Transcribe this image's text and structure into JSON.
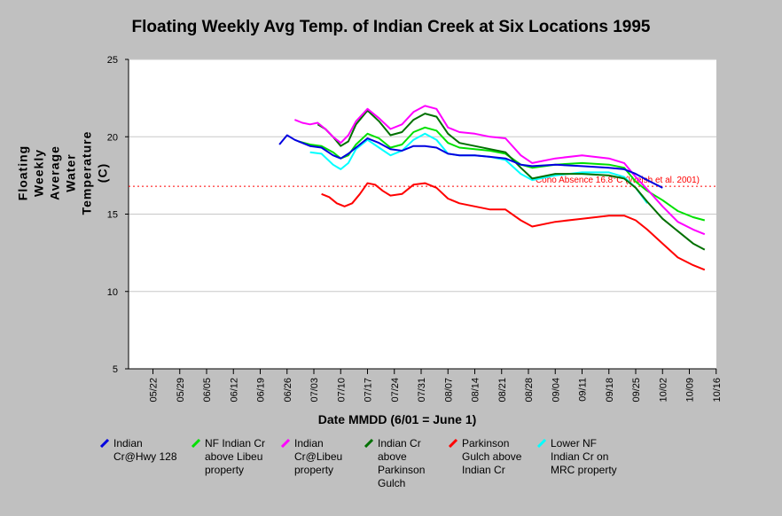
{
  "chart_data": {
    "type": "line",
    "title": "Floating Weekly Avg Temp. of Indian Creek at Six Locations 1995",
    "xlabel": "Date MMDD (6/01 = June 1)",
    "ylabel": "Floating Weekly\nAverage Water\nTemperature (C)",
    "ylim": [
      5,
      25
    ],
    "yticks": [
      "5",
      "10",
      "15",
      "20",
      "25"
    ],
    "xticks": [
      "05/22",
      "05/29",
      "06/05",
      "06/12",
      "06/19",
      "06/26",
      "07/03",
      "07/10",
      "07/17",
      "07/24",
      "07/31",
      "08/07",
      "08/14",
      "08/21",
      "08/28",
      "09/04",
      "09/11",
      "09/18",
      "09/25",
      "10/02",
      "10/09",
      "10/16"
    ],
    "xlim": [
      "05/18",
      "10/25"
    ],
    "grid": "horizontal",
    "reference_line": {
      "y": 16.8,
      "label": "Coho Absence 16.8°C (Welsh et al. 2001)",
      "color": "#ff0000"
    },
    "series": [
      {
        "name": "Indian\nCr@Hwy 128",
        "color": "#0000e0",
        "x": [
          "06/24",
          "06/26",
          "06/28",
          "06/30",
          "07/02",
          "07/05",
          "07/08",
          "07/10",
          "07/12",
          "07/14",
          "07/17",
          "07/20",
          "07/23",
          "07/26",
          "07/29",
          "08/01",
          "08/04",
          "08/07",
          "08/10",
          "08/14",
          "08/18",
          "08/22",
          "08/26",
          "08/29",
          "09/04",
          "09/11",
          "09/18",
          "09/22",
          "09/25",
          "09/28",
          "10/02"
        ],
        "values": [
          19.5,
          20.1,
          19.8,
          19.6,
          19.4,
          19.3,
          18.8,
          18.6,
          18.9,
          19.3,
          19.9,
          19.6,
          19.2,
          19.1,
          19.4,
          19.4,
          19.3,
          18.9,
          18.8,
          18.8,
          18.7,
          18.6,
          18.2,
          18.1,
          18.2,
          18.1,
          18.0,
          17.9,
          17.6,
          17.2,
          16.7
        ]
      },
      {
        "name": "NF Indian Cr\nabove Libeu\nproperty",
        "color": "#00e000",
        "x": [
          "06/29",
          "07/02",
          "07/05",
          "07/08",
          "07/10",
          "07/12",
          "07/14",
          "07/17",
          "07/20",
          "07/23",
          "07/26",
          "07/29",
          "08/01",
          "08/04",
          "08/07",
          "08/10",
          "08/14",
          "08/18",
          "08/22",
          "08/26",
          "08/29",
          "09/04",
          "09/11",
          "09/18",
          "09/22",
          "09/25",
          "09/28",
          "10/02",
          "10/06",
          "10/10",
          "10/13"
        ],
        "values": [
          19.7,
          19.5,
          19.4,
          19.0,
          18.6,
          18.8,
          19.5,
          20.2,
          19.9,
          19.3,
          19.5,
          20.3,
          20.6,
          20.4,
          19.6,
          19.3,
          19.2,
          19.1,
          18.9,
          18.2,
          18.0,
          18.2,
          18.3,
          18.2,
          18.0,
          17.1,
          16.5,
          15.9,
          15.2,
          14.8,
          14.6
        ]
      },
      {
        "name": "Indian\nCr@Libeu\nproperty",
        "color": "#ff00ff",
        "x": [
          "06/28",
          "06/30",
          "07/02",
          "07/04",
          "07/06",
          "07/08",
          "07/10",
          "07/12",
          "07/14",
          "07/17",
          "07/20",
          "07/23",
          "07/26",
          "07/29",
          "08/01",
          "08/04",
          "08/07",
          "08/10",
          "08/14",
          "08/18",
          "08/22",
          "08/26",
          "08/29",
          "09/04",
          "09/11",
          "09/18",
          "09/22",
          "09/25",
          "09/28",
          "10/02",
          "10/06",
          "10/10",
          "10/13"
        ],
        "values": [
          21.1,
          20.9,
          20.8,
          20.9,
          20.5,
          20.0,
          19.6,
          20.1,
          21.0,
          21.8,
          21.2,
          20.5,
          20.8,
          21.6,
          22.0,
          21.8,
          20.6,
          20.3,
          20.2,
          20.0,
          19.9,
          18.8,
          18.3,
          18.6,
          18.8,
          18.6,
          18.3,
          17.4,
          16.6,
          15.5,
          14.5,
          14.0,
          13.7
        ]
      },
      {
        "name": "Indian Cr\nabove\nParkinson\nGulch",
        "color": "#007000",
        "x": [
          "07/04",
          "07/06",
          "07/08",
          "07/10",
          "07/12",
          "07/14",
          "07/17",
          "07/20",
          "07/23",
          "07/26",
          "07/29",
          "08/01",
          "08/04",
          "08/07",
          "08/10",
          "08/14",
          "08/18",
          "08/22",
          "08/26",
          "08/29",
          "09/04",
          "09/11",
          "09/18",
          "09/22",
          "09/25",
          "09/28",
          "10/02",
          "10/06",
          "10/10",
          "10/13"
        ],
        "values": [
          20.8,
          20.5,
          20.0,
          19.4,
          19.7,
          20.8,
          21.7,
          21.0,
          20.1,
          20.3,
          21.1,
          21.5,
          21.3,
          20.2,
          19.6,
          19.4,
          19.2,
          19.0,
          18.0,
          17.3,
          17.6,
          17.6,
          17.5,
          17.3,
          16.7,
          15.8,
          14.7,
          13.9,
          13.1,
          12.7
        ]
      },
      {
        "name": "Parkinson\nGulch above\nIndian Cr",
        "color": "#ff0000",
        "x": [
          "07/05",
          "07/07",
          "07/09",
          "07/11",
          "07/13",
          "07/15",
          "07/17",
          "07/19",
          "07/21",
          "07/23",
          "07/26",
          "07/29",
          "08/01",
          "08/04",
          "08/07",
          "08/10",
          "08/14",
          "08/18",
          "08/22",
          "08/26",
          "08/29",
          "09/04",
          "09/11",
          "09/18",
          "09/22",
          "09/25",
          "09/28",
          "10/02",
          "10/06",
          "10/10",
          "10/13"
        ],
        "values": [
          16.3,
          16.1,
          15.7,
          15.5,
          15.7,
          16.3,
          17.0,
          16.9,
          16.5,
          16.2,
          16.3,
          16.9,
          17.0,
          16.7,
          16.0,
          15.7,
          15.5,
          15.3,
          15.3,
          14.6,
          14.2,
          14.5,
          14.7,
          14.9,
          14.9,
          14.6,
          14.0,
          13.1,
          12.2,
          11.7,
          11.4
        ]
      },
      {
        "name": "Lower NF\nIndian Cr on\nMRC property",
        "color": "#00ffff",
        "x": [
          "07/02",
          "07/05",
          "07/08",
          "07/10",
          "07/12",
          "07/14",
          "07/17",
          "07/20",
          "07/23",
          "07/26",
          "07/29",
          "08/01",
          "08/04",
          "08/07",
          "08/10",
          "08/14",
          "08/18",
          "08/22",
          "08/26",
          "08/29",
          "09/04",
          "09/11",
          "09/18",
          "09/22",
          "09/25",
          "09/28"
        ],
        "values": [
          19.0,
          18.9,
          18.2,
          17.9,
          18.3,
          19.2,
          19.8,
          19.3,
          18.8,
          19.1,
          19.8,
          20.2,
          19.8,
          18.9,
          18.8,
          18.8,
          18.7,
          18.5,
          17.6,
          17.2,
          17.5,
          17.7,
          17.7,
          17.4,
          16.7,
          15.7
        ]
      }
    ]
  }
}
